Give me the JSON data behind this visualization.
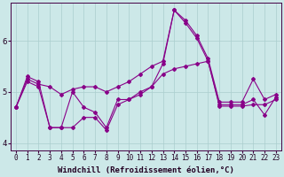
{
  "xlabel": "Windchill (Refroidissement éolien,°C)",
  "bg_color": "#cce8e8",
  "line_color": "#880088",
  "xlim": [
    -0.5,
    23.5
  ],
  "ylim": [
    3.85,
    6.75
  ],
  "yticks": [
    4,
    5,
    6
  ],
  "xticks": [
    0,
    1,
    2,
    3,
    4,
    5,
    6,
    7,
    8,
    9,
    10,
    11,
    12,
    13,
    14,
    15,
    16,
    17,
    18,
    19,
    20,
    21,
    22,
    23
  ],
  "s_volatile_y": [
    4.7,
    5.3,
    5.2,
    4.3,
    4.3,
    5.0,
    4.7,
    4.6,
    4.3,
    4.85,
    4.85,
    5.0,
    5.1,
    5.55,
    6.6,
    6.35,
    6.05,
    5.6,
    4.75,
    4.75,
    4.75,
    4.85,
    4.55,
    4.9
  ],
  "s_upper_y": [
    4.7,
    5.25,
    5.15,
    5.1,
    4.95,
    5.05,
    5.1,
    5.1,
    5.0,
    5.1,
    5.2,
    5.35,
    5.5,
    5.6,
    6.6,
    6.4,
    6.1,
    5.65,
    4.8,
    4.8,
    4.8,
    5.25,
    4.85,
    4.95
  ],
  "s_lower_y": [
    4.7,
    5.2,
    5.1,
    4.3,
    4.3,
    4.3,
    4.5,
    4.5,
    4.25,
    4.75,
    4.85,
    4.95,
    5.1,
    5.35,
    5.45,
    5.5,
    5.55,
    5.6,
    4.72,
    4.72,
    4.72,
    4.75,
    4.75,
    4.85
  ],
  "grid_color": "#aacece",
  "tick_fontsize": 5.5,
  "xlabel_fontsize": 6.5
}
